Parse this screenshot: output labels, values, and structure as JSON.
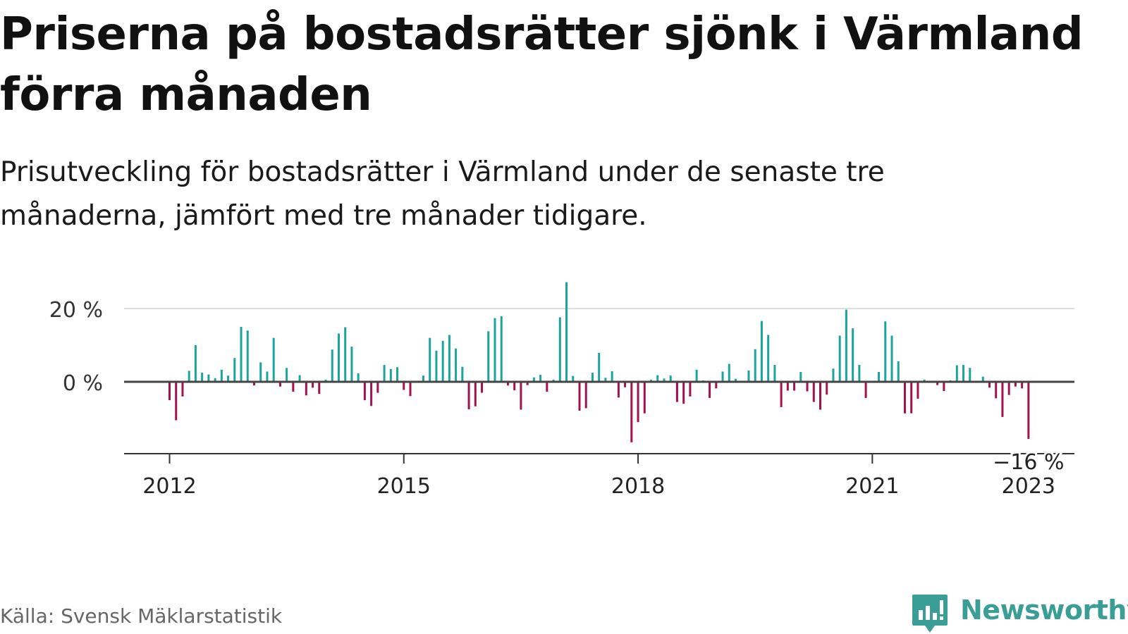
{
  "title": "Priserna på bostadsrätter sjönk i Värmland förra månaden",
  "subtitle": "Prisutveckling för bostadsrätter i Värmland under de senaste tre månaderna, jämfört med tre månader tidigare.",
  "source": "Källa: Svensk Mäklarstatistik",
  "brand": {
    "name": "Newsworthy",
    "icon": "newsworthy-logo-icon",
    "color": "#3a9e97"
  },
  "colors": {
    "positive": "#1ba39c",
    "negative": "#a3124f",
    "zero_line": "#444444",
    "grid": "#dddddd"
  },
  "chart_data": {
    "type": "bar",
    "title": "",
    "xlabel": "",
    "ylabel": "",
    "y_ticks": [
      {
        "value": 20,
        "label": "20 %"
      },
      {
        "value": 0,
        "label": "0 %"
      }
    ],
    "x_ticks": [
      {
        "year": 2012,
        "label": "2012"
      },
      {
        "year": 2015,
        "label": "2015"
      },
      {
        "year": 2018,
        "label": "2018"
      },
      {
        "year": 2021,
        "label": "2021"
      },
      {
        "year": 2023,
        "label": "2023"
      }
    ],
    "ylim": [
      -20,
      28
    ],
    "grid": true,
    "start": "2012-01",
    "annotation": {
      "label": "−16 %",
      "target": "last"
    },
    "values": [
      -5,
      -10.5,
      -4,
      3,
      10,
      2.5,
      2,
      1,
      3.3,
      1.7,
      6.5,
      15,
      14,
      -1,
      5.3,
      2.8,
      12,
      -1.3,
      3.8,
      -2.7,
      1.8,
      -3.7,
      -1.6,
      -3.3,
      0.6,
      8.8,
      13.2,
      14.9,
      9.6,
      2.3,
      -5,
      -6.6,
      -3,
      4.6,
      3.5,
      4,
      -2.2,
      -3.9,
      0.2,
      1.7,
      12,
      8.5,
      11.2,
      12.8,
      9.1,
      4.1,
      -7.5,
      -6.7,
      -3,
      13.8,
      17.4,
      17.9,
      -1,
      -2.3,
      -7.6,
      -0.9,
      1.2,
      1.9,
      -2.7,
      0.6,
      17.6,
      27.2,
      1.6,
      -7.9,
      -7.2,
      2.5,
      7.9,
      1.1,
      2.9,
      -4.3,
      -1.5,
      -16.5,
      -11,
      -8.6,
      0.6,
      1.8,
      0.9,
      1.7,
      -5.5,
      -6,
      -4,
      3.3,
      0.4,
      -4.4,
      -1.8,
      2.8,
      4.9,
      0.8,
      0.3,
      3.1,
      8.9,
      16.6,
      12.8,
      4.6,
      -6.9,
      -2.4,
      -2.4,
      2.7,
      -2.6,
      -5.5,
      -7.6,
      -3.5,
      3.6,
      12.6,
      19.7,
      14.6,
      4.6,
      -4.4,
      0.2,
      2.7,
      16.5,
      12.6,
      5.6,
      -8.6,
      -8.6,
      -4.6,
      0.6,
      0.2,
      -0.9,
      -2.5,
      0.4,
      4.5,
      4.6,
      3.8,
      0.3,
      1.4,
      -1.6,
      -4.5,
      -9.6,
      -3.6,
      -1.3,
      -1.8,
      -15.6
    ]
  }
}
